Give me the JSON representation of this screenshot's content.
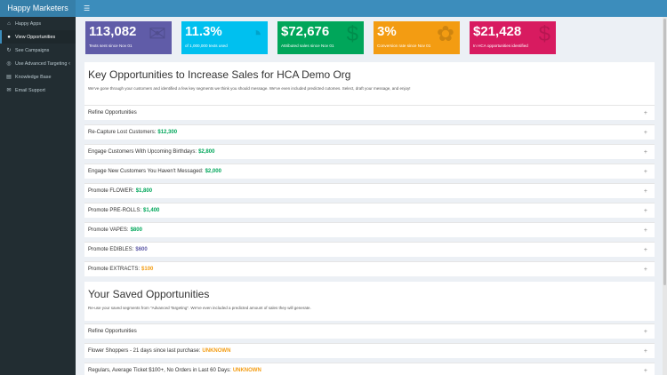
{
  "app": {
    "brand": "Happy Marketers",
    "menu_icon": "hamburger-icon"
  },
  "sidebar": {
    "items": [
      {
        "label": "Happy Apps",
        "icon": "home-icon",
        "glyph": "⌂"
      },
      {
        "label": "View Opportunities",
        "icon": "lightbulb-icon",
        "glyph": "●"
      },
      {
        "label": "See Campaigns",
        "icon": "refresh-icon",
        "glyph": "↻"
      },
      {
        "label": "Use Advanced Targeting",
        "icon": "target-icon",
        "glyph": "◎",
        "chevron": "‹"
      },
      {
        "label": "Knowledge Base",
        "icon": "book-icon",
        "glyph": "▤"
      },
      {
        "label": "Email Support",
        "icon": "support-icon",
        "glyph": "✉"
      }
    ]
  },
  "stats": [
    {
      "value": "113,082",
      "label": "Texts sent since Nov 01",
      "color": "#605ca8",
      "icon": "envelope-icon",
      "glyph": "✉"
    },
    {
      "value": "11.3%",
      "label": "of 1,000,000 texts used",
      "color": "#00c0ef",
      "icon": "gauge-icon",
      "glyph": "◔"
    },
    {
      "value": "$72,676",
      "label": "Attributed sales since Nov 01",
      "color": "#00a65a",
      "icon": "dollar-icon",
      "glyph": "$"
    },
    {
      "value": "3%",
      "label": "Conversion rate since Nov 01",
      "color": "#f39c12",
      "icon": "leaf-icon",
      "glyph": "✿"
    },
    {
      "value": "$21,428",
      "label": "In HCA opportunities identified",
      "color": "#d81b60",
      "icon": "dollar-icon",
      "glyph": "$"
    }
  ],
  "key_section": {
    "title": "Key Opportunities to Increase Sales for HCA Demo Org",
    "subtitle": "We've gone through your customers and identified a few key segments we think you should message. We've even included predicted cutomes. Select, draft your message, and enjoy!",
    "rows": [
      {
        "label": "Refine Opportunities",
        "value": "",
        "color": ""
      },
      {
        "label": "Re-Capture Lost Customers:",
        "value": "$12,300",
        "color": "#00a65a"
      },
      {
        "label": "Engage Customers With Upcoming Birthdays:",
        "value": "$2,800",
        "color": "#00a65a"
      },
      {
        "label": "Engage New Customers You Haven't Messaged:",
        "value": "$2,000",
        "color": "#00a65a"
      },
      {
        "label": "Promote FLOWER:",
        "value": "$1,800",
        "color": "#00a65a"
      },
      {
        "label": "Promote PRE-ROLLS:",
        "value": "$1,400",
        "color": "#00a65a"
      },
      {
        "label": "Promote VAPES:",
        "value": "$800",
        "color": "#00a65a"
      },
      {
        "label": "Promote EDIBLES:",
        "value": "$600",
        "color": "#605ca8"
      },
      {
        "label": "Promote EXTRACTS:",
        "value": "$100",
        "color": "#f39c12"
      }
    ]
  },
  "saved_section": {
    "title": "Your Saved Opportunities",
    "subtitle": "Re-use your saved segments from \"Advanced Targeting\". We've even included a predicted amount of sales they will generate.",
    "rows": [
      {
        "label": "Refine Opportunities",
        "value": "",
        "color": ""
      },
      {
        "label": "Flower Shoppers - 21 days since last purchase:",
        "value": "UNKNOWN",
        "color": "#f39c12"
      },
      {
        "label": "Regulars, Average Ticket $100+, No Orders in Last 60 Days:",
        "value": "UNKNOWN",
        "color": "#f39c12"
      }
    ]
  },
  "expand_glyph": "+"
}
